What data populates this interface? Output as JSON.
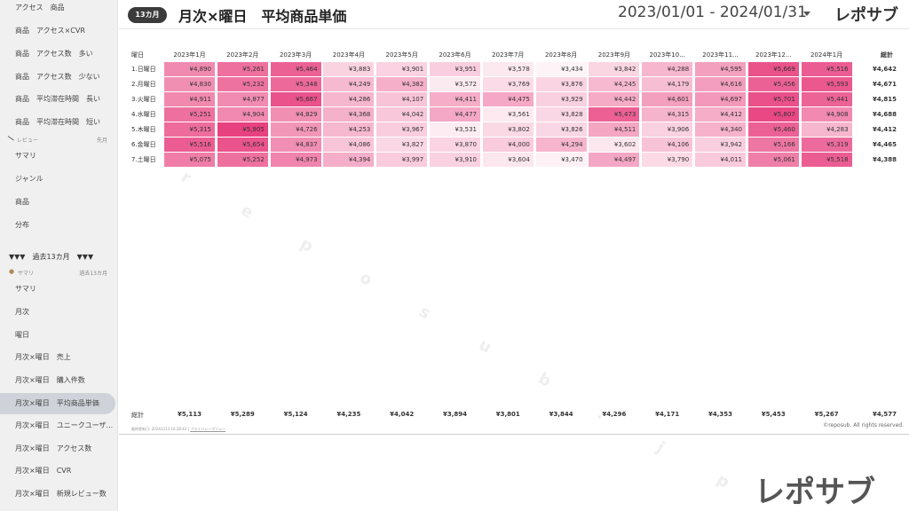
{
  "sidebar": {
    "top_items": [
      "アクセス　商品",
      "商品　アクセス×CVR",
      "商品　アクセス数　多い",
      "商品　アクセス数　少ない",
      "商品　平均滞在時間　長い",
      "商品　平均滞在時間　短い"
    ],
    "review_header": "レビュー",
    "review_header_right": "先月",
    "review_items": [
      "サマリ",
      "ジャンル",
      "商品",
      "分布"
    ],
    "section_13m": "▼▼▼　過去13カ月　▼▼▼",
    "summary_header": "サマリ",
    "summary_header_right": "過去13カ月",
    "items_13m": [
      "サマリ",
      "月次",
      "曜日",
      "月次×曜日　売上",
      "月次×曜日　購入件数",
      "月次×曜日　平均商品単価",
      "月次×曜日　ユニークユーザ...",
      "月次×曜日　アクセス数",
      "月次×曜日　CVR",
      "月次×曜日　新規レビュー数"
    ],
    "active_index": 5
  },
  "header": {
    "badge": "13カ月",
    "title": "月次×曜日　平均商品単価",
    "date_range": "2023/01/01 - 2024/01/31",
    "logo": "レポサブ"
  },
  "table": {
    "corner_label": "曜日",
    "months": [
      "2023年1月",
      "2023年2月",
      "2023年3月",
      "2023年4月",
      "2023年5月",
      "2023年6月",
      "2023年7月",
      "2023年8月",
      "2023年9月",
      "2023年10...",
      "2023年11...",
      "2023年12...",
      "2024年1月"
    ],
    "total_label": "総計",
    "rows": [
      {
        "label": "1.日曜日",
        "values": [
          4890,
          5261,
          5464,
          3883,
          3901,
          3951,
          3578,
          3434,
          3842,
          4288,
          4595,
          5669,
          5516
        ],
        "total": 4642
      },
      {
        "label": "2.月曜日",
        "values": [
          4830,
          5232,
          5348,
          4249,
          4382,
          3572,
          3769,
          3876,
          4245,
          4179,
          4616,
          5456,
          5593
        ],
        "total": 4671
      },
      {
        "label": "3.火曜日",
        "values": [
          4911,
          4877,
          5667,
          4286,
          4107,
          4411,
          4475,
          3929,
          4442,
          4601,
          4697,
          5701,
          5441
        ],
        "total": 4815
      },
      {
        "label": "4.水曜日",
        "values": [
          5251,
          4904,
          4829,
          4368,
          4042,
          4477,
          3561,
          3828,
          5473,
          4315,
          4412,
          5807,
          4908
        ],
        "total": 4688
      },
      {
        "label": "5.木曜日",
        "values": [
          5315,
          5905,
          4726,
          4253,
          3967,
          3531,
          3802,
          3826,
          4511,
          3906,
          4340,
          5460,
          4283
        ],
        "total": 4412
      },
      {
        "label": "6.金曜日",
        "values": [
          5516,
          5654,
          4837,
          4086,
          3827,
          3870,
          4000,
          4294,
          3602,
          4106,
          3942,
          5166,
          5319
        ],
        "total": 4465
      },
      {
        "label": "7.土曜日",
        "values": [
          5075,
          5252,
          4973,
          4394,
          3997,
          3910,
          3604,
          3470,
          4497,
          3790,
          4011,
          5061,
          5518
        ],
        "total": 4388
      }
    ],
    "footer_label": "総計",
    "footer_values": [
      5113,
      5289,
      5124,
      4235,
      4042,
      3894,
      3801,
      3844,
      4296,
      4171,
      4353,
      5453,
      5267
    ],
    "footer_total": 4577,
    "currency_symbol": "¥",
    "heat_color_low": "#ffffff",
    "heat_color_high": "#e8417f"
  },
  "footer": {
    "updated_text": "最終更新日: 2024/2/13 16:28:42",
    "privacy_link": "プライバシーポリシー",
    "copyright": "©reposub. All rights reserved."
  },
  "watermark": {
    "chars": [
      "r",
      "e",
      "p",
      "o",
      "s",
      "u",
      "b",
      ".",
      "j",
      "p"
    ]
  },
  "brand_logo": "レポサブ"
}
